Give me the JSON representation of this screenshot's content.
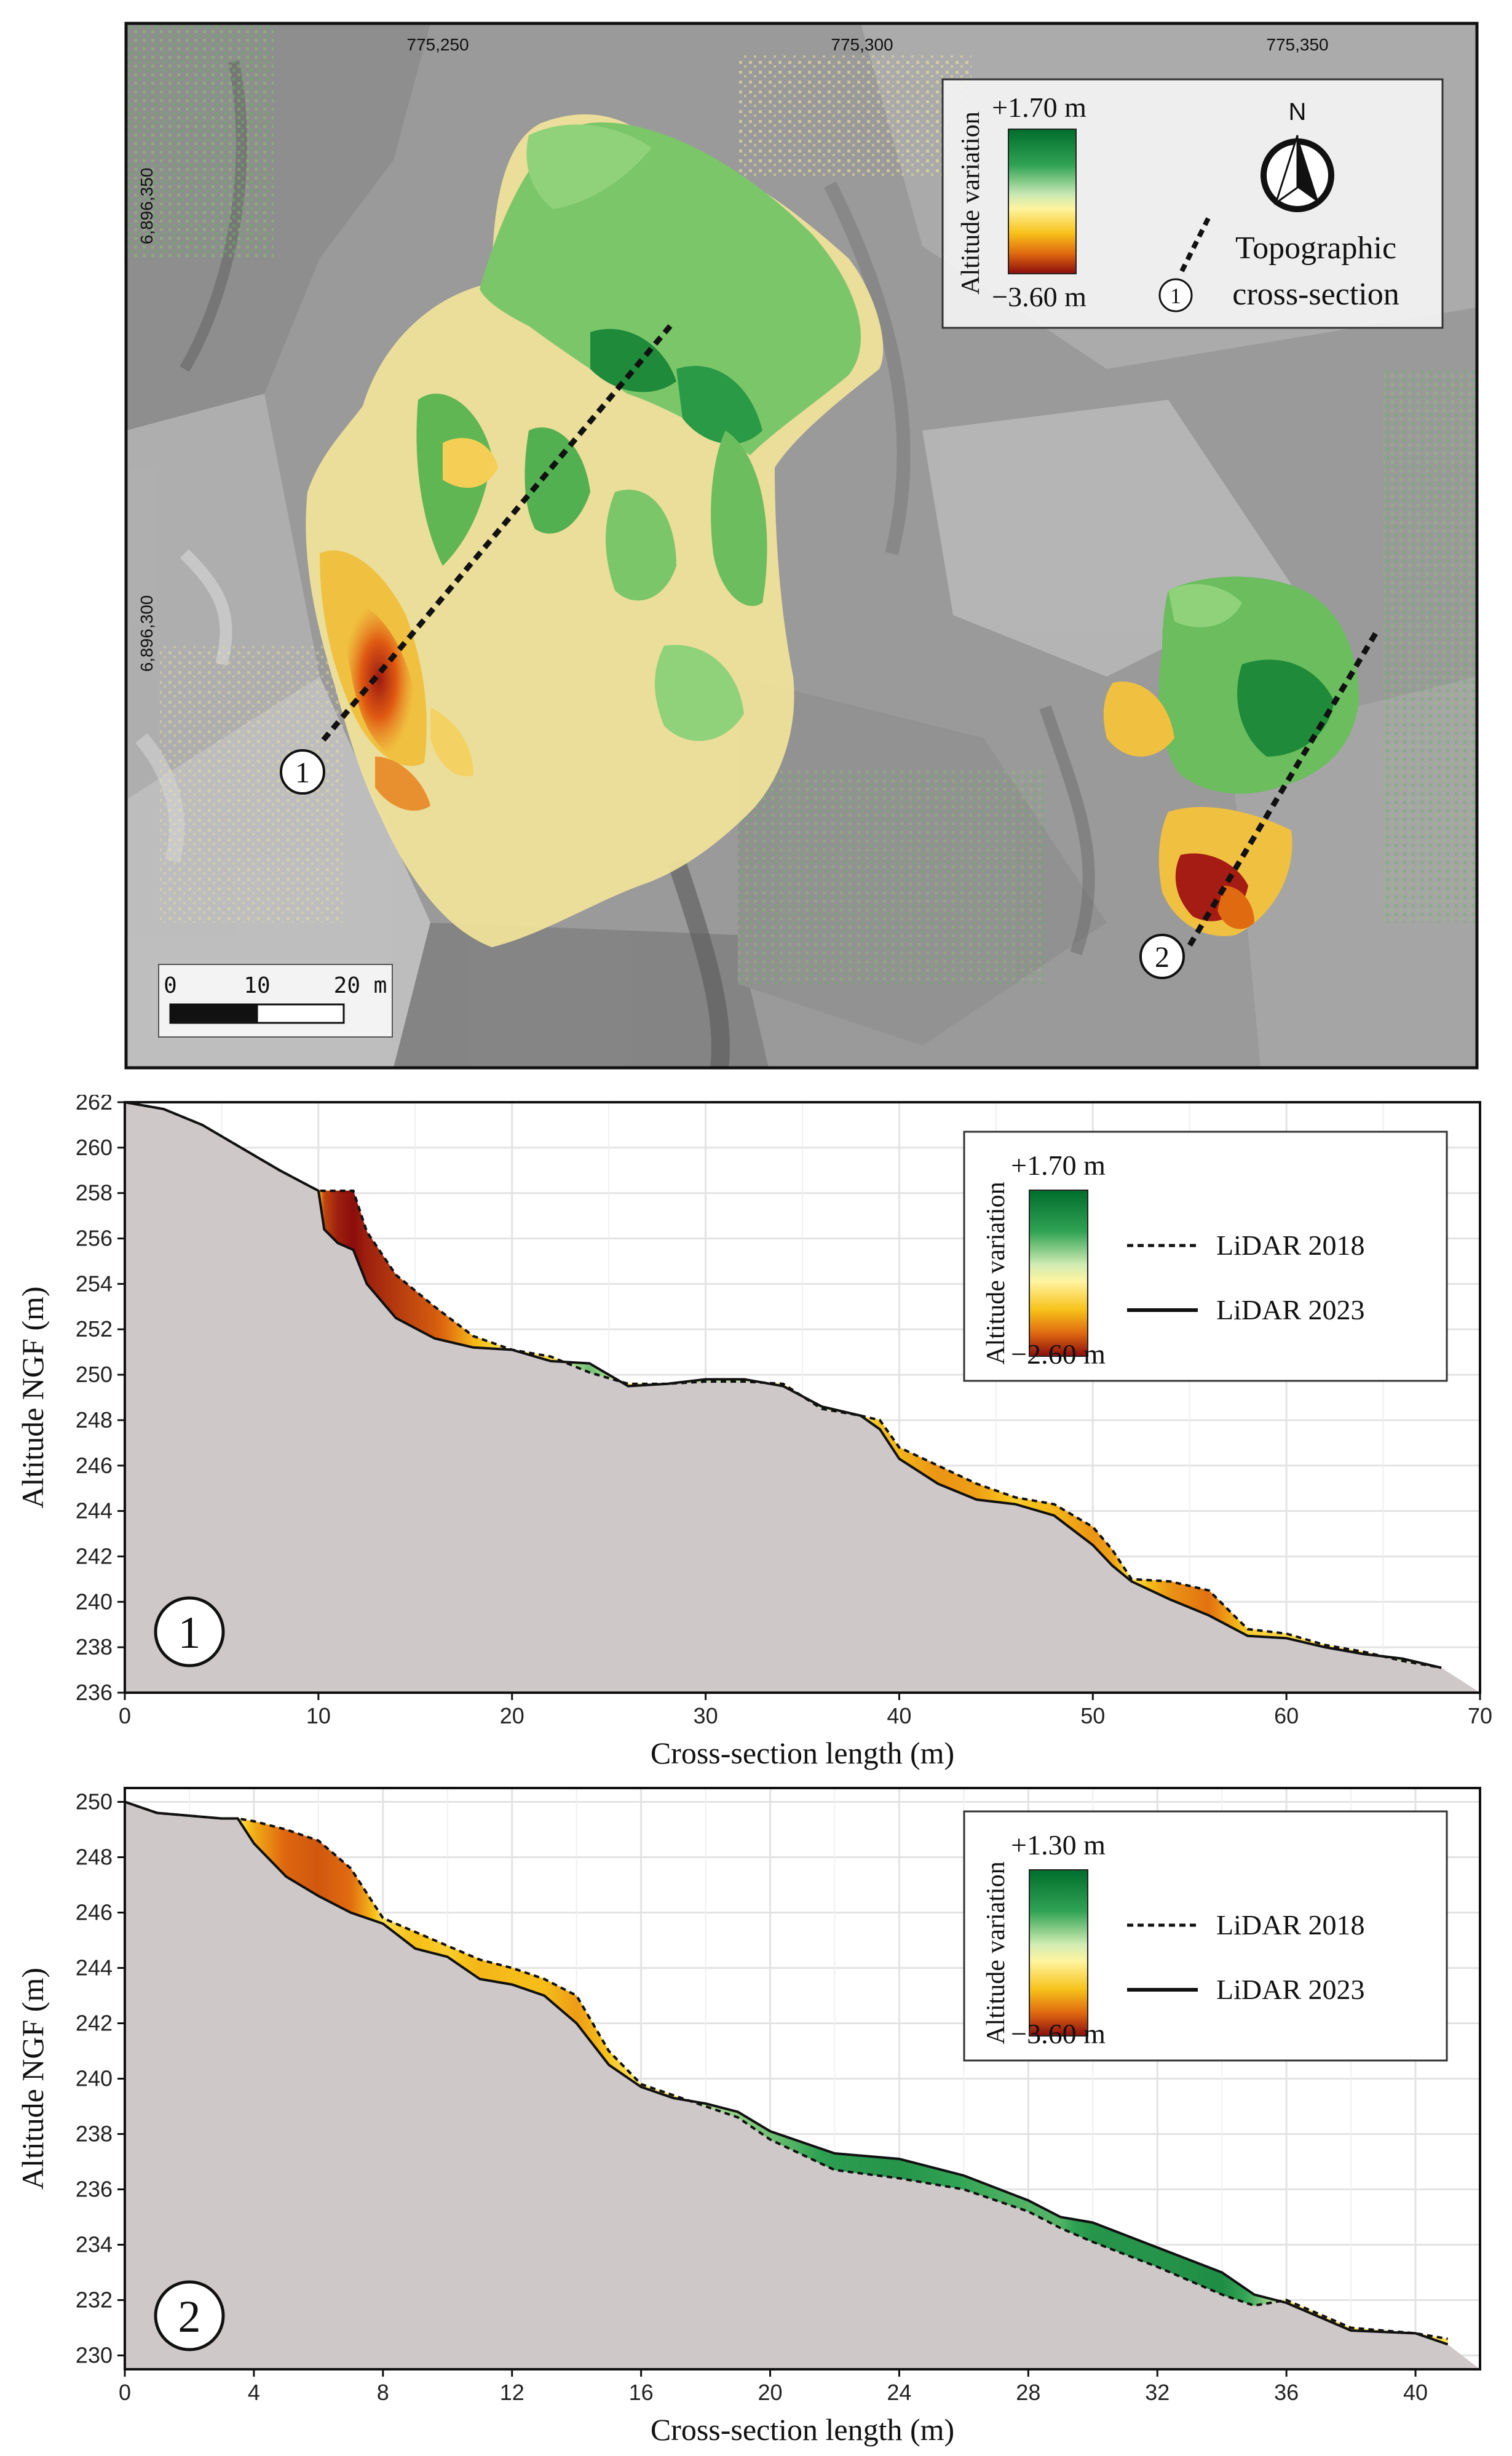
{
  "map": {
    "x_coord_labels": [
      "775,250",
      "775,300",
      "775,350"
    ],
    "y_coord_labels": [
      "6,896,350",
      "6,896,300"
    ],
    "legend": {
      "title": "Altitude variation",
      "max_label": "+1.70 m",
      "min_label": "−3.60 m",
      "north_label": "N",
      "section_marker": "1",
      "section_label_line1": "Topographic",
      "section_label_line2": "cross-section"
    },
    "scale_bar": {
      "ticks": [
        "0",
        "10",
        "20 m"
      ]
    },
    "section_markers": [
      "1",
      "2"
    ],
    "colors": {
      "gain": "#1a9a3a",
      "gain_light": "#8fd27a",
      "neutral": "#f2e9a0",
      "loss_mid": "#e8a020",
      "loss": "#9c1a12"
    }
  },
  "chart_data": [
    {
      "type": "area",
      "panel_marker": "1",
      "xlabel": "Cross-section length (m)",
      "ylabel": "Altitude NGF (m)",
      "xlim": [
        0,
        70
      ],
      "ylim": [
        236,
        262
      ],
      "x_ticks": [
        0,
        10,
        20,
        30,
        40,
        50,
        60,
        70
      ],
      "y_ticks": [
        236,
        238,
        240,
        242,
        244,
        246,
        248,
        250,
        252,
        254,
        256,
        258,
        260,
        262
      ],
      "legend": {
        "title": "Altitude variation",
        "max_label": "+1.70 m",
        "min_label": "−2.60 m",
        "entries": [
          "LiDAR 2018",
          "LiDAR 2023"
        ]
      },
      "series": [
        {
          "name": "LiDAR 2018",
          "x": [
            0,
            2,
            4,
            6,
            8,
            10,
            11,
            11.8,
            12.5,
            14,
            16,
            18,
            20,
            22,
            24,
            26,
            28,
            30,
            32,
            34,
            36,
            38,
            39,
            40,
            42,
            44,
            46,
            48,
            50,
            51,
            52,
            54,
            56,
            58,
            60,
            62,
            64,
            66,
            68
          ],
          "y": [
            262,
            261.7,
            261,
            260,
            259,
            258.1,
            258.1,
            258.1,
            256.3,
            254.4,
            253,
            251.7,
            251.1,
            250.8,
            250.1,
            249.6,
            249.6,
            249.7,
            249.7,
            249.6,
            248.5,
            248.2,
            248,
            246.8,
            246,
            245.2,
            244.6,
            244.3,
            243.3,
            242.3,
            241,
            240.9,
            240.5,
            238.8,
            238.6,
            238.1,
            237.8,
            237.4,
            237.1
          ]
        },
        {
          "name": "LiDAR 2023",
          "x": [
            0,
            2,
            4,
            6,
            8,
            10,
            10.3,
            11,
            11.8,
            12.5,
            14,
            16,
            18,
            20,
            22,
            24,
            26,
            28,
            30,
            32,
            34,
            36,
            38,
            39,
            40,
            42,
            44,
            46,
            48,
            50,
            51,
            52,
            54,
            56,
            58,
            60,
            62,
            64,
            66,
            68
          ],
          "y": [
            262,
            261.7,
            261,
            260,
            259,
            258.1,
            256.4,
            255.8,
            255.5,
            254,
            252.5,
            251.6,
            251.2,
            251.1,
            250.6,
            250.5,
            249.5,
            249.6,
            249.8,
            249.8,
            249.5,
            248.6,
            248.2,
            247.6,
            246.3,
            245.2,
            244.5,
            244.3,
            243.8,
            242.5,
            241.6,
            240.9,
            240.1,
            239.4,
            238.5,
            238.4,
            238,
            237.7,
            237.5,
            237.1
          ]
        }
      ]
    },
    {
      "type": "area",
      "panel_marker": "2",
      "xlabel": "Cross-section length (m)",
      "ylabel": "Altitude NGF (m)",
      "xlim": [
        0,
        42
      ],
      "ylim": [
        229.5,
        250.5
      ],
      "x_ticks": [
        0,
        4,
        8,
        12,
        16,
        20,
        24,
        28,
        32,
        36,
        40
      ],
      "y_ticks": [
        230,
        232,
        234,
        236,
        238,
        240,
        242,
        244,
        246,
        248,
        250
      ],
      "legend": {
        "title": "Altitude variation",
        "max_label": "+1.30 m",
        "min_label": "−3.60 m",
        "entries": [
          "LiDAR 2018",
          "LiDAR 2023"
        ]
      },
      "series": [
        {
          "name": "LiDAR 2018",
          "x": [
            0,
            1,
            2,
            3,
            3.5,
            4,
            5,
            6,
            7,
            8,
            9,
            10,
            11,
            12,
            13,
            14,
            15,
            16,
            17,
            18,
            19,
            20,
            22,
            24,
            26,
            28,
            29,
            30,
            32,
            34,
            35,
            36,
            38,
            40,
            41
          ],
          "y": [
            250,
            249.6,
            249.5,
            249.4,
            249.4,
            249.3,
            249,
            248.6,
            247.6,
            245.8,
            245.3,
            244.8,
            244.3,
            244,
            243.6,
            243,
            241,
            239.8,
            239.4,
            239,
            238.6,
            237.8,
            236.7,
            236.4,
            236,
            235.2,
            234.6,
            234.1,
            233.2,
            232.2,
            231.8,
            232,
            231,
            230.8,
            230.6
          ]
        },
        {
          "name": "LiDAR 2023",
          "x": [
            0,
            1,
            2,
            3,
            3.5,
            4,
            5,
            6,
            7,
            8,
            9,
            10,
            11,
            12,
            13,
            14,
            15,
            16,
            17,
            18,
            19,
            20,
            22,
            24,
            26,
            28,
            29,
            30,
            32,
            34,
            35,
            36,
            38,
            40,
            41
          ],
          "y": [
            250,
            249.6,
            249.5,
            249.4,
            249.4,
            248.5,
            247.3,
            246.6,
            246,
            245.6,
            244.7,
            244.4,
            243.6,
            243.4,
            243,
            242,
            240.5,
            239.7,
            239.3,
            239.1,
            238.8,
            238.1,
            237.3,
            237.1,
            236.5,
            235.6,
            235,
            234.8,
            233.9,
            233,
            232.2,
            231.9,
            230.9,
            230.8,
            230.4
          ]
        }
      ]
    }
  ]
}
